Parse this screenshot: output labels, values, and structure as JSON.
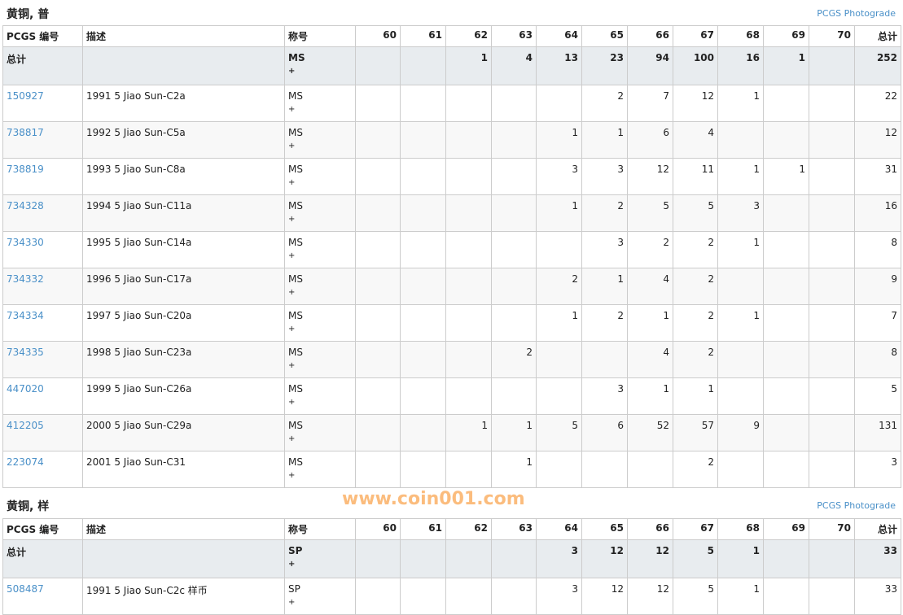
{
  "headers": [
    "PCGS 编号",
    "描述",
    "称号",
    "60",
    "61",
    "62",
    "63",
    "64",
    "65",
    "66",
    "67",
    "68",
    "69",
    "70",
    "总计"
  ],
  "photograde_label": "PCGS Photograde",
  "watermark": "www.coin001.com",
  "sections": [
    {
      "title": "黄铜, 普",
      "total": {
        "label": "总计",
        "designation": "MS",
        "plus": "+",
        "grades": [
          "",
          "",
          "1",
          "4",
          "13",
          "23",
          "94",
          "100",
          "16",
          "1",
          ""
        ],
        "total": "252"
      },
      "rows": [
        {
          "id": "150927",
          "desc": "1991 5 Jiao Sun-C2a",
          "designation": "MS",
          "plus": "+",
          "grades": [
            "",
            "",
            "",
            "",
            "",
            "2",
            "7",
            "12",
            "1",
            "",
            ""
          ],
          "total": "22"
        },
        {
          "id": "738817",
          "desc": "1992 5 Jiao Sun-C5a",
          "designation": "MS",
          "plus": "+",
          "grades": [
            "",
            "",
            "",
            "",
            "1",
            "1",
            "6",
            "4",
            "",
            "",
            ""
          ],
          "total": "12"
        },
        {
          "id": "738819",
          "desc": "1993 5 Jiao Sun-C8a",
          "designation": "MS",
          "plus": "+",
          "grades": [
            "",
            "",
            "",
            "",
            "3",
            "3",
            "12",
            "11",
            "1",
            "1",
            ""
          ],
          "total": "31"
        },
        {
          "id": "734328",
          "desc": "1994 5 Jiao Sun-C11a",
          "designation": "MS",
          "plus": "+",
          "grades": [
            "",
            "",
            "",
            "",
            "1",
            "2",
            "5",
            "5",
            "3",
            "",
            ""
          ],
          "total": "16"
        },
        {
          "id": "734330",
          "desc": "1995 5 Jiao Sun-C14a",
          "designation": "MS",
          "plus": "+",
          "grades": [
            "",
            "",
            "",
            "",
            "",
            "3",
            "2",
            "2",
            "1",
            "",
            ""
          ],
          "total": "8"
        },
        {
          "id": "734332",
          "desc": "1996 5 Jiao Sun-C17a",
          "designation": "MS",
          "plus": "+",
          "grades": [
            "",
            "",
            "",
            "",
            "2",
            "1",
            "4",
            "2",
            "",
            "",
            ""
          ],
          "total": "9"
        },
        {
          "id": "734334",
          "desc": "1997 5 Jiao Sun-C20a",
          "designation": "MS",
          "plus": "+",
          "grades": [
            "",
            "",
            "",
            "",
            "1",
            "2",
            "1",
            "2",
            "1",
            "",
            ""
          ],
          "total": "7"
        },
        {
          "id": "734335",
          "desc": "1998 5 Jiao Sun-C23a",
          "designation": "MS",
          "plus": "+",
          "grades": [
            "",
            "",
            "",
            "2",
            "",
            "",
            "4",
            "2",
            "",
            "",
            ""
          ],
          "total": "8"
        },
        {
          "id": "447020",
          "desc": "1999 5 Jiao Sun-C26a",
          "designation": "MS",
          "plus": "+",
          "grades": [
            "",
            "",
            "",
            "",
            "",
            "3",
            "1",
            "1",
            "",
            "",
            ""
          ],
          "total": "5"
        },
        {
          "id": "412205",
          "desc": "2000 5 Jiao Sun-C29a",
          "designation": "MS",
          "plus": "+",
          "grades": [
            "",
            "",
            "1",
            "1",
            "5",
            "6",
            "52",
            "57",
            "9",
            "",
            ""
          ],
          "total": "131"
        },
        {
          "id": "223074",
          "desc": "2001 5 Jiao Sun-C31",
          "designation": "MS",
          "plus": "+",
          "grades": [
            "",
            "",
            "",
            "1",
            "",
            "",
            "",
            "2",
            "",
            "",
            ""
          ],
          "total": "3"
        }
      ]
    },
    {
      "title": "黄铜, 样",
      "total": {
        "label": "总计",
        "designation": "SP",
        "plus": "+",
        "grades": [
          "",
          "",
          "",
          "",
          "3",
          "12",
          "12",
          "5",
          "1",
          "",
          ""
        ],
        "total": "33"
      },
      "rows": [
        {
          "id": "508487",
          "desc": "1991 5 Jiao Sun-C2c 样币",
          "designation": "SP",
          "plus": "+",
          "grades": [
            "",
            "",
            "",
            "",
            "3",
            "12",
            "12",
            "5",
            "1",
            "",
            ""
          ],
          "total": "33"
        }
      ]
    }
  ]
}
